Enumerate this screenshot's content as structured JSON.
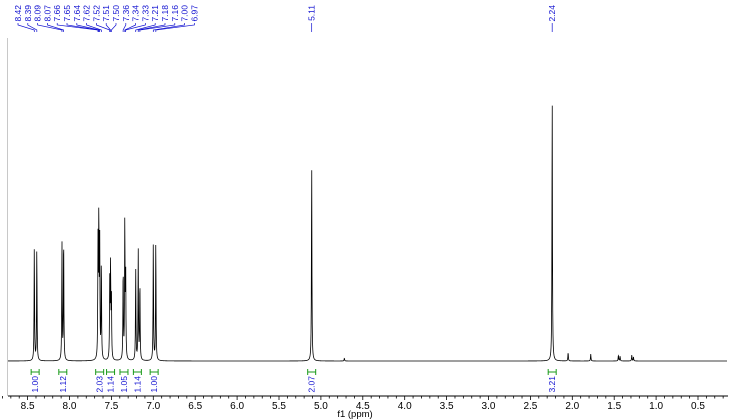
{
  "chart_data": {
    "type": "line",
    "xlabel": "f1 (ppm)",
    "ylabel": "",
    "title": "",
    "xlim": [
      8.85,
      0.1
    ],
    "x_reversed": true,
    "grid": false,
    "x_ticks": [
      "8.5",
      "8.0",
      "7.5",
      "7.0",
      "6.5",
      "6.0",
      "5.5",
      "5.0",
      "4.5",
      "4.0",
      "3.5",
      "3.0",
      "2.5",
      "2.0",
      "1.5",
      "1.0",
      "0.5"
    ],
    "peaks": [
      {
        "ppm": 8.42,
        "intensity": 115
      },
      {
        "ppm": 8.39,
        "intensity": 115
      },
      {
        "ppm": 8.09,
        "intensity": 119
      },
      {
        "ppm": 8.07,
        "intensity": 129
      },
      {
        "ppm": 7.66,
        "intensity": 115
      },
      {
        "ppm": 7.65,
        "intensity": 141
      },
      {
        "ppm": 7.64,
        "intensity": 125
      },
      {
        "ppm": 7.62,
        "intensity": 100
      },
      {
        "ppm": 7.52,
        "intensity": 77
      },
      {
        "ppm": 7.51,
        "intensity": 94
      },
      {
        "ppm": 7.5,
        "intensity": 69
      },
      {
        "ppm": 7.36,
        "intensity": 94
      },
      {
        "ppm": 7.34,
        "intensity": 139
      },
      {
        "ppm": 7.33,
        "intensity": 95
      },
      {
        "ppm": 7.21,
        "intensity": 93
      },
      {
        "ppm": 7.18,
        "intensity": 111
      },
      {
        "ppm": 7.16,
        "intensity": 81
      },
      {
        "ppm": 7.0,
        "intensity": 119
      },
      {
        "ppm": 6.97,
        "intensity": 121
      },
      {
        "ppm": 5.11,
        "intensity": 203
      },
      {
        "ppm": 2.24,
        "intensity": 269
      },
      {
        "ppm": 4.72,
        "intensity": 3
      },
      {
        "ppm": 2.05,
        "intensity": 9
      },
      {
        "ppm": 1.78,
        "intensity": 7
      },
      {
        "ppm": 1.45,
        "intensity": 6
      },
      {
        "ppm": 1.43,
        "intensity": 5
      },
      {
        "ppm": 1.29,
        "intensity": 6
      },
      {
        "ppm": 1.27,
        "intensity": 4
      }
    ],
    "peak_labels": [
      {
        "text": "8.42",
        "ppm": 8.42
      },
      {
        "text": "8.39",
        "ppm": 8.39
      },
      {
        "text": "8.09",
        "ppm": 8.09
      },
      {
        "text": "8.07",
        "ppm": 8.07
      },
      {
        "text": "7.66",
        "ppm": 7.66
      },
      {
        "text": "7.65",
        "ppm": 7.65
      },
      {
        "text": "7.64",
        "ppm": 7.64
      },
      {
        "text": "7.62",
        "ppm": 7.62
      },
      {
        "text": "7.52",
        "ppm": 7.52
      },
      {
        "text": "7.51",
        "ppm": 7.51
      },
      {
        "text": "7.50",
        "ppm": 7.5
      },
      {
        "text": "7.36",
        "ppm": 7.36
      },
      {
        "text": "7.34",
        "ppm": 7.34
      },
      {
        "text": "7.33",
        "ppm": 7.33
      },
      {
        "text": "7.21",
        "ppm": 7.21
      },
      {
        "text": "7.18",
        "ppm": 7.18
      },
      {
        "text": "7.16",
        "ppm": 7.16
      },
      {
        "text": "7.00",
        "ppm": 7.0
      },
      {
        "text": "6.97",
        "ppm": 6.97
      },
      {
        "text": "5.11",
        "ppm": 5.11
      },
      {
        "text": "2.24",
        "ppm": 2.24
      }
    ],
    "integrals": [
      {
        "ppm": 8.41,
        "value": "1.00"
      },
      {
        "ppm": 8.08,
        "value": "1.12"
      },
      {
        "ppm": 7.64,
        "value": "2.03"
      },
      {
        "ppm": 7.51,
        "value": "1.14"
      },
      {
        "ppm": 7.35,
        "value": "1.05"
      },
      {
        "ppm": 7.19,
        "value": "1.14"
      },
      {
        "ppm": 6.99,
        "value": "1.00"
      },
      {
        "ppm": 5.11,
        "value": "2.07"
      },
      {
        "ppm": 2.24,
        "value": "3.21"
      }
    ],
    "colors": {
      "spectrum": "#000000",
      "peak_labels": "#1010d0",
      "integral_marks": "#1a9a1a",
      "integral_labels": "#1010d0"
    }
  }
}
